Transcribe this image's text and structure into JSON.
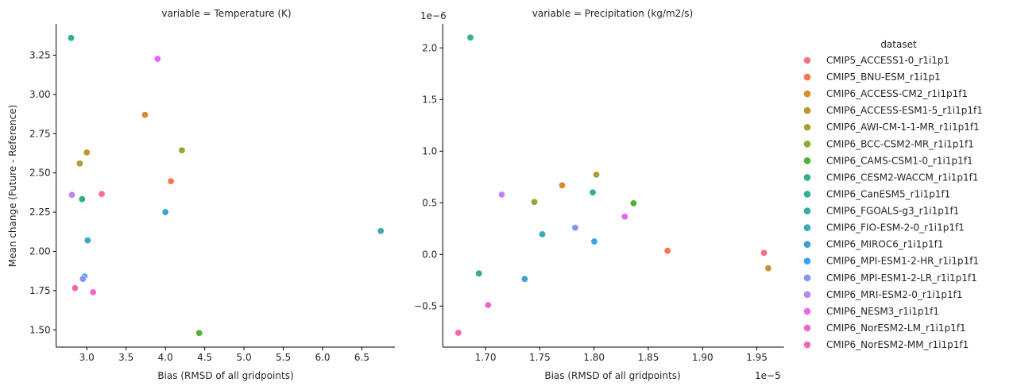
{
  "legend": {
    "title": "dataset",
    "placement": "right",
    "entries": [
      {
        "name": "CMIP5_ACCESS1-0_r1i1p1",
        "color": "#f77189"
      },
      {
        "name": "CMIP5_BNU-ESM_r1i1p1",
        "color": "#f7754f"
      },
      {
        "name": "CMIP6_ACCESS-CM2_r1i1p1f1",
        "color": "#dc8932"
      },
      {
        "name": "CMIP6_ACCESS-ESM1-5_r1i1p1f1",
        "color": "#c39532"
      },
      {
        "name": "CMIP6_AWI-CM-1-1-MR_r1i1p1f1",
        "color": "#ae9d31"
      },
      {
        "name": "CMIP6_BCC-CSM2-MR_r1i1p1f1",
        "color": "#97a431"
      },
      {
        "name": "CMIP6_CAMS-CSM1-0_r1i1p1f1",
        "color": "#50b131"
      },
      {
        "name": "CMIP6_CESM2-WACCM_r1i1p1f1",
        "color": "#33b07a"
      },
      {
        "name": "CMIP6_CanESM5_r1i1p1f1",
        "color": "#34ae91"
      },
      {
        "name": "CMIP6_FGOALS-g3_r1i1p1f1",
        "color": "#36ada4"
      },
      {
        "name": "CMIP6_FIO-ESM-2-0_r1i1p1f1",
        "color": "#38aab7"
      },
      {
        "name": "CMIP6_MIROC6_r1i1p1f1",
        "color": "#3ba3cc"
      },
      {
        "name": "CMIP6_MPI-ESM1-2-HR_r1i1p1f1",
        "color": "#3ba3ec"
      },
      {
        "name": "CMIP6_MPI-ESM1-2-LR_r1i1p1f1",
        "color": "#8197f4"
      },
      {
        "name": "CMIP6_MRI-ESM2-0_r1i1p1f1",
        "color": "#bb83f4"
      },
      {
        "name": "CMIP6_NESM3_r1i1p1f1",
        "color": "#e866f4"
      },
      {
        "name": "CMIP6_NorESM2-LM_r1i1p1f1",
        "color": "#f565cc"
      },
      {
        "name": "CMIP6_NorESM2-MM_r1i1p1f1",
        "color": "#f668b1"
      }
    ]
  },
  "chart_data": [
    {
      "type": "scatter",
      "title": "variable = Temperature (K)",
      "xlabel": "Bias (RMSD of all gridpoints)",
      "ylabel": "Mean change (Future - Reference)",
      "xlim": [
        2.61,
        6.92
      ],
      "ylim": [
        1.39,
        3.45
      ],
      "xticks": [
        "3.0",
        "3.5",
        "4.0",
        "4.5",
        "5.0",
        "5.5",
        "6.0",
        "6.5"
      ],
      "yticks": [
        "1.50",
        "1.75",
        "2.00",
        "2.25",
        "2.50",
        "2.75",
        "3.00",
        "3.25"
      ],
      "x_offset_text": "",
      "y_offset_text": "",
      "grid": false,
      "points": [
        {
          "dataset": "CMIP5_ACCESS1-0_r1i1p1",
          "x": 3.19,
          "y": 2.366
        },
        {
          "dataset": "CMIP5_BNU-ESM_r1i1p1",
          "x": 4.07,
          "y": 2.447
        },
        {
          "dataset": "CMIP6_ACCESS-CM2_r1i1p1f1",
          "x": 3.74,
          "y": 2.87
        },
        {
          "dataset": "CMIP6_ACCESS-ESM1-5_r1i1p1f1",
          "x": 3.0,
          "y": 2.63
        },
        {
          "dataset": "CMIP6_AWI-CM-1-1-MR_r1i1p1f1",
          "x": 2.91,
          "y": 2.56
        },
        {
          "dataset": "CMIP6_BCC-CSM2-MR_r1i1p1f1",
          "x": 4.21,
          "y": 2.644
        },
        {
          "dataset": "CMIP6_CAMS-CSM1-0_r1i1p1f1",
          "x": 4.43,
          "y": 1.48
        },
        {
          "dataset": "CMIP6_CESM2-WACCM_r1i1p1f1",
          "x": 2.94,
          "y": 2.333
        },
        {
          "dataset": "CMIP6_CanESM5_r1i1p1f1",
          "x": 2.8,
          "y": 3.36
        },
        {
          "dataset": "CMIP6_FGOALS-g3_r1i1p1f1",
          "x": 6.74,
          "y": 2.13
        },
        {
          "dataset": "CMIP6_FIO-ESM-2-0_r1i1p1f1",
          "x": 3.01,
          "y": 2.07
        },
        {
          "dataset": "CMIP6_MIROC6_r1i1p1f1",
          "x": 4.0,
          "y": 2.25
        },
        {
          "dataset": "CMIP6_MPI-ESM1-2-HR_r1i1p1f1",
          "x": 2.97,
          "y": 1.84
        },
        {
          "dataset": "CMIP6_MPI-ESM1-2-LR_r1i1p1f1",
          "x": 2.95,
          "y": 1.825
        },
        {
          "dataset": "CMIP6_MRI-ESM2-0_r1i1p1f1",
          "x": 2.81,
          "y": 2.36
        },
        {
          "dataset": "CMIP6_NESM3_r1i1p1f1",
          "x": 3.9,
          "y": 3.227
        },
        {
          "dataset": "CMIP6_NorESM2-LM_r1i1p1f1",
          "x": 3.08,
          "y": 1.74
        },
        {
          "dataset": "CMIP6_NorESM2-MM_r1i1p1f1",
          "x": 2.85,
          "y": 1.766
        }
      ]
    },
    {
      "type": "scatter",
      "title": "variable = Precipitation (kg/m2/s)",
      "xlabel": "Bias (RMSD of all gridpoints)",
      "ylabel": "",
      "xlim": [
        1.6606e-05,
        1.975e-05
      ],
      "ylim": [
        -8.98e-07,
        2.233e-06
      ],
      "xticks": [
        "1.70",
        "1.75",
        "1.80",
        "1.85",
        "1.90",
        "1.95"
      ],
      "yticks": [
        "−0.5",
        "0.0",
        "0.5",
        "1.0",
        "1.5",
        "2.0"
      ],
      "x_offset_text": "1e−5",
      "y_offset_text": "1e−6",
      "grid": false,
      "points": [
        {
          "dataset": "CMIP5_ACCESS1-0_r1i1p1",
          "x": 1.9566e-05,
          "y": 1.5e-08
        },
        {
          "dataset": "CMIP5_BNU-ESM_r1i1p1",
          "x": 1.8677e-05,
          "y": 3.5e-08
        },
        {
          "dataset": "CMIP6_ACCESS-CM2_r1i1p1f1",
          "x": 1.7706e-05,
          "y": 6.69e-07
        },
        {
          "dataset": "CMIP6_ACCESS-ESM1-5_r1i1p1f1",
          "x": 1.9605e-05,
          "y": -1.34e-07
        },
        {
          "dataset": "CMIP6_AWI-CM-1-1-MR_r1i1p1f1",
          "x": 1.8021e-05,
          "y": 7.72e-07
        },
        {
          "dataset": "CMIP6_BCC-CSM2-MR_r1i1p1f1",
          "x": 1.745e-05,
          "y": 5.08e-07
        },
        {
          "dataset": "CMIP6_CAMS-CSM1-0_r1i1p1f1",
          "x": 1.8364e-05,
          "y": 4.95e-07
        },
        {
          "dataset": "CMIP6_CESM2-WACCM_r1i1p1f1",
          "x": 1.6939e-05,
          "y": -1.85e-07
        },
        {
          "dataset": "CMIP6_CanESM5_r1i1p1f1",
          "x": 1.686e-05,
          "y": 2.1e-06
        },
        {
          "dataset": "CMIP6_FGOALS-g3_r1i1p1f1",
          "x": 1.7988e-05,
          "y": 6e-07
        },
        {
          "dataset": "CMIP6_FIO-ESM-2-0_r1i1p1f1",
          "x": 1.7523e-05,
          "y": 1.95e-07
        },
        {
          "dataset": "CMIP6_MIROC6_r1i1p1f1",
          "x": 1.7361e-05,
          "y": -2.38e-07
        },
        {
          "dataset": "CMIP6_MPI-ESM1-2-HR_r1i1p1f1",
          "x": 1.8002e-05,
          "y": 1.25e-07
        },
        {
          "dataset": "CMIP6_MPI-ESM1-2-LR_r1i1p1f1",
          "x": 1.7826e-05,
          "y": 2.58e-07
        },
        {
          "dataset": "CMIP6_MRI-ESM2-0_r1i1p1f1",
          "x": 1.7149e-05,
          "y": 5.79e-07
        },
        {
          "dataset": "CMIP6_NESM3_r1i1p1f1",
          "x": 1.8283e-05,
          "y": 3.66e-07
        },
        {
          "dataset": "CMIP6_NorESM2-LM_r1i1p1f1",
          "x": 1.7024e-05,
          "y": -4.9e-07
        },
        {
          "dataset": "CMIP6_NorESM2-MM_r1i1p1f1",
          "x": 1.6749e-05,
          "y": -7.59e-07
        }
      ]
    }
  ]
}
